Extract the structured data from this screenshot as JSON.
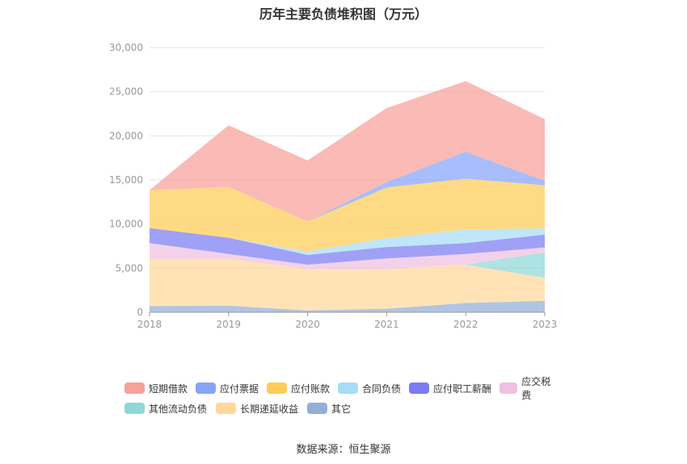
{
  "chart_data": {
    "type": "area",
    "stacked": true,
    "title": "历年主要负债堆积图（万元）",
    "x": [
      "2018",
      "2019",
      "2020",
      "2021",
      "2022",
      "2023"
    ],
    "y_ticks": [
      "0",
      "5,000",
      "10,000",
      "15,000",
      "20,000",
      "25,000",
      "30,000"
    ],
    "ylim": [
      0,
      30000
    ],
    "grid": true,
    "legend_position": "bottom",
    "series": [
      {
        "name": "其它",
        "color": "#92aed9",
        "values": [
          700,
          750,
          200,
          400,
          1050,
          1300
        ]
      },
      {
        "name": "长期递延收益",
        "color": "#ffd89a",
        "values": [
          5350,
          5300,
          4700,
          4500,
          4350,
          2600
        ]
      },
      {
        "name": "其他流动负债",
        "color": "#8ed8d8",
        "values": [
          0,
          0,
          0,
          0,
          0,
          2900
        ]
      },
      {
        "name": "应交税费",
        "color": "#efc0e0",
        "values": [
          1800,
          550,
          500,
          1200,
          1200,
          550
        ]
      },
      {
        "name": "应付职工薪酬",
        "color": "#7b7bf2",
        "values": [
          1700,
          1850,
          1100,
          1300,
          1250,
          1450
        ]
      },
      {
        "name": "合同负债",
        "color": "#a6ddf6",
        "values": [
          0,
          0,
          400,
          1000,
          1550,
          700
        ]
      },
      {
        "name": "应付账款",
        "color": "#ffcc55",
        "values": [
          4300,
          5750,
          3400,
          5750,
          5750,
          4900
        ]
      },
      {
        "name": "应付票据",
        "color": "#86a4f9",
        "values": [
          0,
          0,
          0,
          600,
          3050,
          500
        ]
      },
      {
        "name": "短期借款",
        "color": "#f8a09a",
        "values": [
          0,
          7000,
          6900,
          8400,
          8000,
          7000
        ]
      }
    ]
  },
  "legend_order": [
    "短期借款",
    "应付票据",
    "应付账款",
    "合同负债",
    "应付职工薪酬",
    "应交税费",
    "其他流动负债",
    "长期递延收益",
    "其它"
  ],
  "source": "数据来源：恒生聚源"
}
